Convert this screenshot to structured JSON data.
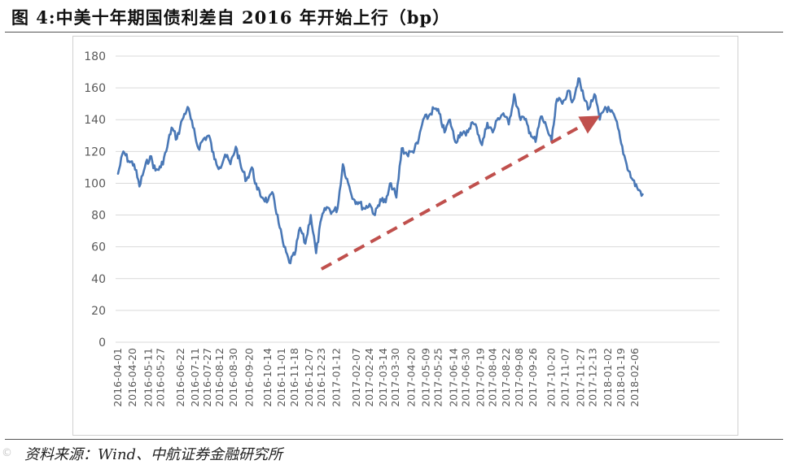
{
  "figure": {
    "title": "图 4:中美十年期国债利差自 2016 年开始上行（bp）",
    "source": "资料来源：Wind、中航证券金融研究所",
    "watermark": "©"
  },
  "colors": {
    "series": "#4a78b6",
    "trend_arrow": "#c0504d",
    "gridline": "#d9d9d9",
    "tick_text": "#595959"
  },
  "chart_data": {
    "type": "line",
    "title": "",
    "xlabel": "",
    "ylabel": "",
    "ylim": [
      0,
      180
    ],
    "yticks": [
      0,
      20,
      40,
      60,
      80,
      100,
      120,
      140,
      160,
      180
    ],
    "grid": true,
    "legend": "none",
    "categories": [
      "2016-04-01",
      "2016-04-20",
      "2016-05-11",
      "2016-05-27",
      "2016-06-22",
      "2016-07-11",
      "2016-07-27",
      "2016-08-12",
      "2016-08-30",
      "2016-09-20",
      "2016-10-14",
      "2016-11-01",
      "2016-11-18",
      "2016-12-07",
      "2016-12-23",
      "2017-01-12",
      "2017-02-07",
      "2017-02-24",
      "2017-03-14",
      "2017-03-30",
      "2017-04-20",
      "2017-05-09",
      "2017-05-25",
      "2017-06-14",
      "2017-06-30",
      "2017-07-19",
      "2017-08-04",
      "2017-08-22",
      "2017-09-08",
      "2017-09-26",
      "2017-10-20",
      "2017-11-07",
      "2017-11-27",
      "2017-12-13",
      "2018-01-02",
      "2018-01-19",
      "2018-02-06"
    ],
    "series": [
      {
        "name": "",
        "x": [
          "2016-04-01",
          "2016-04-08",
          "2016-04-15",
          "2016-04-22",
          "2016-04-29",
          "2016-05-06",
          "2016-05-13",
          "2016-05-20",
          "2016-05-27",
          "2016-06-03",
          "2016-06-10",
          "2016-06-17",
          "2016-06-24",
          "2016-07-01",
          "2016-07-08",
          "2016-07-15",
          "2016-07-22",
          "2016-07-29",
          "2016-08-05",
          "2016-08-12",
          "2016-08-19",
          "2016-08-26",
          "2016-09-02",
          "2016-09-09",
          "2016-09-16",
          "2016-09-23",
          "2016-09-30",
          "2016-10-07",
          "2016-10-14",
          "2016-10-21",
          "2016-10-28",
          "2016-11-04",
          "2016-11-11",
          "2016-11-18",
          "2016-11-25",
          "2016-12-02",
          "2016-12-09",
          "2016-12-16",
          "2016-12-23",
          "2016-12-30",
          "2017-01-06",
          "2017-01-13",
          "2017-01-20",
          "2017-01-27",
          "2017-02-03",
          "2017-02-10",
          "2017-02-17",
          "2017-02-24",
          "2017-03-03",
          "2017-03-10",
          "2017-03-17",
          "2017-03-24",
          "2017-03-31",
          "2017-04-07",
          "2017-04-14",
          "2017-04-21",
          "2017-04-28",
          "2017-05-05",
          "2017-05-12",
          "2017-05-19",
          "2017-05-26",
          "2017-06-02",
          "2017-06-09",
          "2017-06-16",
          "2017-06-23",
          "2017-06-30",
          "2017-07-07",
          "2017-07-14",
          "2017-07-21",
          "2017-07-28",
          "2017-08-04",
          "2017-08-11",
          "2017-08-18",
          "2017-08-25",
          "2017-09-01",
          "2017-09-08",
          "2017-09-15",
          "2017-09-22",
          "2017-09-29",
          "2017-10-06",
          "2017-10-13",
          "2017-10-20",
          "2017-10-27",
          "2017-11-03",
          "2017-11-10",
          "2017-11-17",
          "2017-11-24",
          "2017-12-01",
          "2017-12-08",
          "2017-12-15",
          "2017-12-22",
          "2017-12-29",
          "2018-01-05",
          "2018-01-12",
          "2018-01-19",
          "2018-01-26",
          "2018-02-02",
          "2018-02-09",
          "2018-02-16"
        ],
        "values": [
          106,
          120,
          114,
          112,
          98,
          110,
          117,
          108,
          110,
          120,
          135,
          128,
          140,
          148,
          135,
          122,
          128,
          130,
          115,
          110,
          118,
          112,
          123,
          110,
          102,
          110,
          96,
          91,
          89,
          93,
          75,
          60,
          50,
          55,
          72,
          62,
          80,
          56,
          78,
          85,
          82,
          84,
          112,
          100,
          90,
          88,
          84,
          87,
          80,
          90,
          88,
          100,
          91,
          122,
          118,
          120,
          125,
          140,
          142,
          147,
          144,
          132,
          140,
          126,
          132,
          130,
          138,
          135,
          124,
          138,
          132,
          141,
          144,
          137,
          156,
          142,
          140,
          132,
          126,
          142,
          136,
          126,
          153,
          150,
          158,
          152,
          166,
          154,
          147,
          156,
          140,
          148,
          145,
          140,
          125,
          112,
          103,
          97,
          93
        ]
      }
    ],
    "annotations": [
      {
        "type": "trend-arrow",
        "from": [
          "2016-12-23",
          46
        ],
        "to": [
          "2017-12-13",
          140
        ],
        "style": "dashed"
      }
    ]
  }
}
